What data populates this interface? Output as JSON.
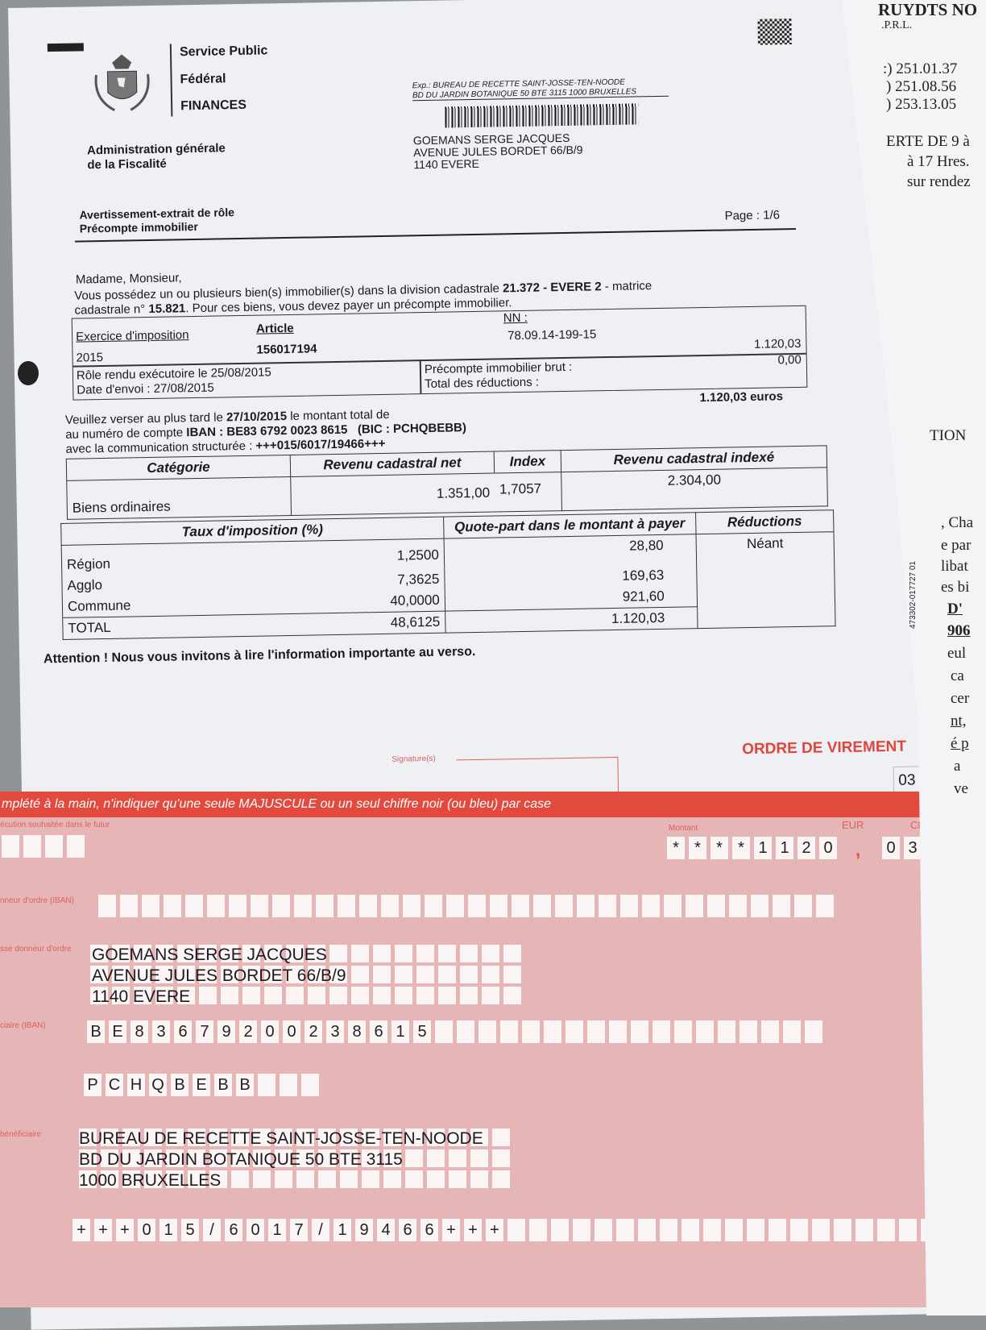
{
  "header": {
    "org": [
      "Service Public",
      "Fédéral",
      "FINANCES"
    ],
    "administration": [
      "Administration générale",
      "de la Fiscalité"
    ],
    "sender": [
      "Exp.: BUREAU DE RECETTE SAINT-JOSSE-TEN-NOODE",
      "BD DU JARDIN BOTANIQUE 50 BTE 3115  1000 BRUXELLES"
    ],
    "recipient": [
      "GOEMANS SERGE JACQUES",
      "AVENUE JULES BORDET 66/B/9",
      "1140 EVERE"
    ],
    "doc_title": [
      "Avertissement-extrait de rôle",
      "Précompte immobilier"
    ],
    "page": "Page : 1/6"
  },
  "intro": {
    "salutation": "Madame, Monsieur,",
    "line1_a": "Vous possédez un ou plusieurs bien(s) immobilier(s)  dans la division cadastrale ",
    "division": "21.372 - EVERE 2",
    "line1_b": " - matrice",
    "line2_a": "cadastrale n° ",
    "matrice": "15.821",
    "line2_b": ". Pour ces biens, vous devez payer un précompte immobilier."
  },
  "info": {
    "exercice_label": "Exercice d'imposition",
    "exercice": "2015",
    "article_label": "Article",
    "article": "156017194",
    "nn_label": "NN :",
    "nn": "78.09.14-199-15",
    "role": "Rôle rendu exécutoire le 25/08/2015",
    "envoi": "Date d'envoi : 27/08/2015",
    "brut_label": "Précompte immobilier brut :",
    "brut": "1.120,03",
    "reductions_label": "Total des réductions :",
    "reductions": "0,00",
    "total": "1.120,03 euros"
  },
  "payment": {
    "l1_a": "Veuillez verser au plus tard le ",
    "due_date": "27/10/2015",
    "l1_b": " le montant total de",
    "l2_a": "au numéro de compte ",
    "iban": "IBAN : BE83 6792 0023 8615",
    "bic": "(BIC : PCHQBEBB)",
    "l3_a": "avec la communication structurée : ",
    "communication": "+++015/6017/19466+++"
  },
  "cadastre": {
    "headers": [
      "Catégorie",
      "Revenu cadastral net",
      "Index",
      "Revenu cadastral indexé"
    ],
    "row": [
      "Biens ordinaires",
      "1.351,00",
      "1,7057",
      "2.304,00"
    ]
  },
  "taxes": {
    "headers": [
      "Taux d'imposition (%)",
      "Quote-part dans le montant à payer",
      "Réductions"
    ],
    "rows": [
      {
        "name": "Région",
        "rate": "1,2500",
        "amount": "28,80"
      },
      {
        "name": "Agglo",
        "rate": "7,3625",
        "amount": "169,63"
      },
      {
        "name": "Commune",
        "rate": "40,0000",
        "amount": "921,60"
      }
    ],
    "total": {
      "name": "TOTAL",
      "rate": "48,6125",
      "amount": "1.120,03"
    },
    "reductions": "Néant"
  },
  "attention": "Attention !  Nous vous invitons à lire l'information importante au verso.",
  "transfer": {
    "signature_label": "Signature(s)",
    "title": "ORDRE DE VIREMENT",
    "code": "03",
    "instruction": "mplété à la main, n'indiquer qu'une seule MAJUSCULE ou un seul chiffre noir (ou bleu) par case",
    "exec_label": "écution souhaitée dans le futur",
    "amount_label": "Montant",
    "eur_label": "EUR",
    "cent_label": "CENT",
    "amount_chars": [
      "*",
      "*",
      "*",
      "*",
      "1",
      "1",
      "2",
      "0"
    ],
    "cent_chars": [
      "0",
      "3"
    ],
    "donor_iban_label": "nneur d'ordre (IBAN)",
    "donor_addr_label": "sse donneur d'ordre",
    "donor_address": [
      "GOEMANS SERGE JACQUES",
      "AVENUE JULES BORDET 66/B/9",
      "1140 EVERE"
    ],
    "benef_iban_label": "ciaire (IBAN)",
    "benef_iban_chars": [
      "B",
      "E",
      "8",
      "3",
      "6",
      "7",
      "9",
      "2",
      "0",
      "0",
      "2",
      "3",
      "8",
      "6",
      "1",
      "5"
    ],
    "bic_chars": [
      "P",
      "C",
      "H",
      "Q",
      "B",
      "E",
      "B",
      "B"
    ],
    "benef_label": "bénéficiaire",
    "benef_address": [
      "BUREAU DE RECETTE SAINT-JOSSE-TEN-NOODE",
      "BD DU JARDIN BOTANIQUE  50 BTE 3115",
      "1000 BRUXELLES"
    ],
    "comm_chars": [
      "+",
      "+",
      "+",
      "0",
      "1",
      "5",
      "/",
      "6",
      "0",
      "1",
      "7",
      "/",
      "1",
      "9",
      "4",
      "6",
      "6",
      "+",
      "+",
      "+"
    ]
  },
  "side_paper": {
    "lines": [
      "RUYDTS  NO",
      ".P.R.L.",
      ":) 251.01.37",
      ") 251.08.56",
      ") 253.13.05",
      "ERTE DE 9 à",
      "à 17 Hres.",
      "sur rendez",
      "TION",
      ", Cha",
      "e  par",
      "libat",
      "es bi",
      "D'",
      "906",
      "eul",
      "ca",
      "cer",
      "nt,",
      "é p",
      "a",
      "ve"
    ],
    "ref": "473302-017727  01"
  },
  "colors": {
    "form_pink": "#e6b5b5",
    "banner_red": "#e24a3e",
    "label_red": "#d9635c"
  }
}
